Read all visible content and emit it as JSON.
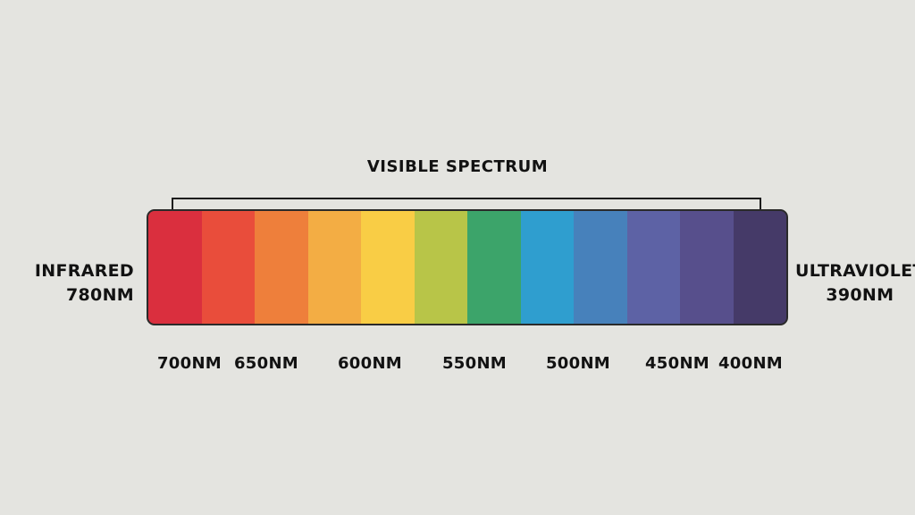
{
  "title": "VISIBLE SPECTRUM",
  "left_label": {
    "name": "INFRARED",
    "wavelength": "780NM"
  },
  "right_label": {
    "name": "ULTRAVIOLET",
    "wavelength": "390NM"
  },
  "bands": [
    {
      "color": "#da2f3e"
    },
    {
      "color": "#e94d3b"
    },
    {
      "color": "#ee7f3b"
    },
    {
      "color": "#f3ad44"
    },
    {
      "color": "#f9cd45"
    },
    {
      "color": "#b8c548"
    },
    {
      "color": "#3ca46a"
    },
    {
      "color": "#2f9ecf"
    },
    {
      "color": "#4781bb"
    },
    {
      "color": "#5d62a5"
    },
    {
      "color": "#574f8c"
    },
    {
      "color": "#453a68"
    }
  ],
  "ticks": [
    {
      "label": "700NM",
      "wavelength": 700
    },
    {
      "label": "650NM",
      "wavelength": 650
    },
    {
      "label": "600NM",
      "wavelength": 600
    },
    {
      "label": "550NM",
      "wavelength": 550
    },
    {
      "label": "500NM",
      "wavelength": 500
    },
    {
      "label": "450NM",
      "wavelength": 450
    },
    {
      "label": "400NM",
      "wavelength": 400
    }
  ]
}
